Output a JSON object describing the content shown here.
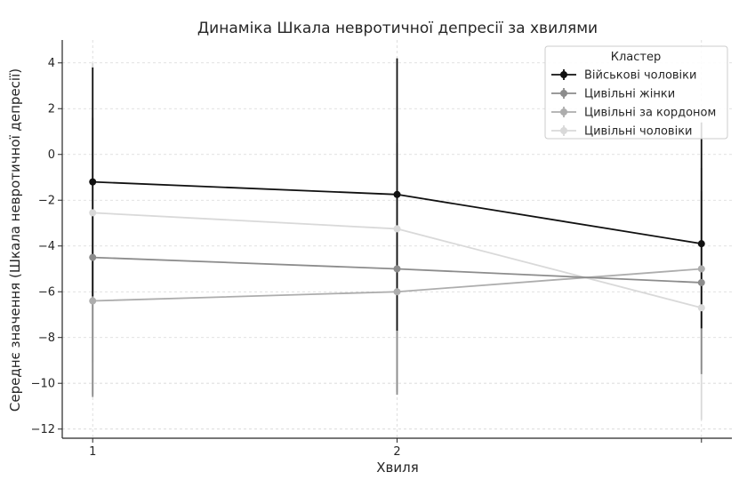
{
  "chart_data": {
    "type": "line",
    "title": "Динаміка Шкала невротичної депресії за хвилями",
    "xlabel": "Хвиля",
    "ylabel": "Середнє значення (Шкала невротичної депресії)",
    "x": [
      1,
      2,
      3
    ],
    "x_tick_labels": [
      "1",
      "2",
      ""
    ],
    "xlim": [
      0.9,
      3.1
    ],
    "ylim": [
      -12.4,
      5.0
    ],
    "y_ticks": [
      4,
      2,
      0,
      -2,
      -4,
      -6,
      -8,
      -10,
      -12
    ],
    "y_tick_labels": [
      "4",
      "2",
      "0",
      "−2",
      "−4",
      "−6",
      "−8",
      "−10",
      "−12"
    ],
    "grid": true,
    "legend": {
      "title": "Кластер",
      "position": "top-right"
    },
    "series": [
      {
        "name": "Військові чоловіки",
        "color": "#111111",
        "values": [
          -1.2,
          -1.75,
          -3.9
        ],
        "err_low": [
          -6.2,
          -7.7,
          -7.6
        ],
        "err_high": [
          3.8,
          4.2,
          1.4
        ]
      },
      {
        "name": "Цивільні жінки",
        "color": "#8c8c8c",
        "values": [
          -4.5,
          -5.0,
          -5.6
        ],
        "err_low": [
          -10.6,
          -10.5,
          -9.6
        ],
        "err_high": [
          1.6,
          0.5,
          -1.6
        ]
      },
      {
        "name": "Цивільні за кордоном",
        "color": "#adadad",
        "values": [
          -6.4,
          -6.0,
          -5.0
        ],
        "err_low": [
          -10.5,
          -10.4,
          -9.4
        ],
        "err_high": [
          -2.3,
          -1.6,
          -0.6
        ]
      },
      {
        "name": "Цивільні чоловіки",
        "color": "#d9d9d9",
        "values": [
          -2.55,
          -3.25,
          -6.7
        ],
        "err_low": [
          -9.1,
          -8.6,
          -11.6
        ],
        "err_high": [
          4.0,
          2.1,
          -1.8
        ]
      }
    ]
  }
}
